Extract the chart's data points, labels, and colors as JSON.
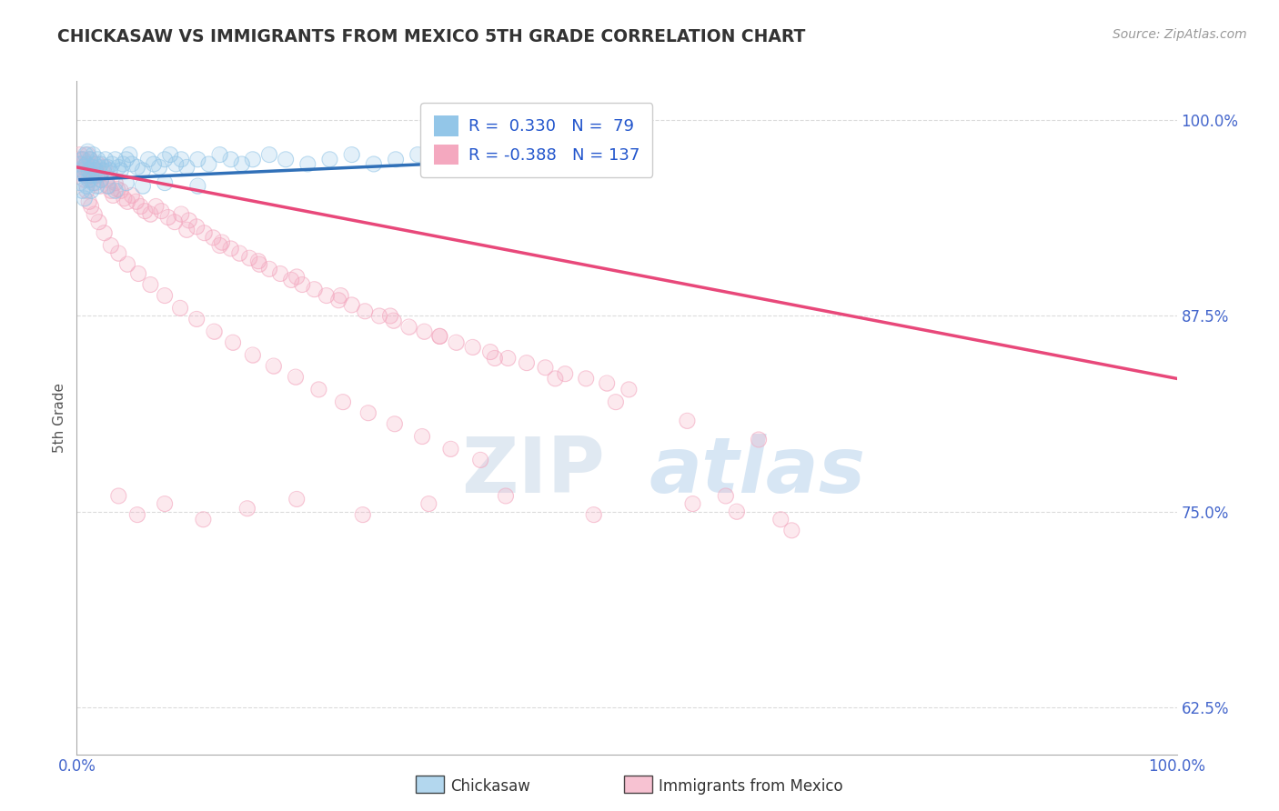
{
  "title": "CHICKASAW VS IMMIGRANTS FROM MEXICO 5TH GRADE CORRELATION CHART",
  "source_text": "Source: ZipAtlas.com",
  "ylabel": "5th Grade",
  "xlim": [
    0.0,
    1.0
  ],
  "ylim": [
    0.595,
    1.025
  ],
  "yticks": [
    0.625,
    0.75,
    0.875,
    1.0
  ],
  "ytick_labels": [
    "62.5%",
    "75.0%",
    "87.5%",
    "100.0%"
  ],
  "xticks": [
    0.0,
    1.0
  ],
  "xtick_labels": [
    "0.0%",
    "100.0%"
  ],
  "blue_R": 0.33,
  "blue_N": 79,
  "pink_R": -0.388,
  "pink_N": 137,
  "blue_color": "#93c6e8",
  "pink_color": "#f4a8bf",
  "blue_line_color": "#3070b8",
  "pink_line_color": "#e8487a",
  "legend_label_blue": "Chickasaw",
  "legend_label_pink": "Immigrants from Mexico",
  "watermark_zip": "ZIP",
  "watermark_atlas": "atlas",
  "background_color": "#ffffff",
  "grid_color": "#cccccc",
  "title_color": "#333333",
  "blue_scatter_x": [
    0.003,
    0.004,
    0.005,
    0.006,
    0.007,
    0.008,
    0.009,
    0.01,
    0.011,
    0.012,
    0.013,
    0.014,
    0.015,
    0.016,
    0.017,
    0.018,
    0.019,
    0.02,
    0.022,
    0.024,
    0.026,
    0.028,
    0.03,
    0.032,
    0.035,
    0.038,
    0.04,
    0.042,
    0.045,
    0.048,
    0.05,
    0.055,
    0.06,
    0.065,
    0.07,
    0.075,
    0.08,
    0.085,
    0.09,
    0.095,
    0.1,
    0.11,
    0.12,
    0.13,
    0.14,
    0.15,
    0.16,
    0.175,
    0.19,
    0.21,
    0.23,
    0.25,
    0.27,
    0.29,
    0.31,
    0.33,
    0.35,
    0.37,
    0.39,
    0.41,
    0.43,
    0.45,
    0.47,
    0.49,
    0.51,
    0.003,
    0.005,
    0.007,
    0.009,
    0.011,
    0.013,
    0.015,
    0.018,
    0.022,
    0.028,
    0.035,
    0.045,
    0.06,
    0.08,
    0.11
  ],
  "blue_scatter_y": [
    0.972,
    0.968,
    0.975,
    0.97,
    0.965,
    0.978,
    0.972,
    0.98,
    0.968,
    0.975,
    0.965,
    0.97,
    0.978,
    0.972,
    0.968,
    0.965,
    0.975,
    0.97,
    0.972,
    0.968,
    0.975,
    0.97,
    0.968,
    0.972,
    0.975,
    0.97,
    0.968,
    0.972,
    0.975,
    0.978,
    0.972,
    0.97,
    0.968,
    0.975,
    0.972,
    0.97,
    0.975,
    0.978,
    0.972,
    0.975,
    0.97,
    0.975,
    0.972,
    0.978,
    0.975,
    0.972,
    0.975,
    0.978,
    0.975,
    0.972,
    0.975,
    0.978,
    0.972,
    0.975,
    0.978,
    0.975,
    0.972,
    0.978,
    0.975,
    0.972,
    0.975,
    0.978,
    0.975,
    0.978,
    0.975,
    0.96,
    0.955,
    0.95,
    0.958,
    0.962,
    0.955,
    0.96,
    0.958,
    0.962,
    0.958,
    0.955,
    0.96,
    0.958,
    0.96,
    0.958
  ],
  "pink_scatter_x": [
    0.003,
    0.004,
    0.005,
    0.006,
    0.007,
    0.008,
    0.009,
    0.01,
    0.011,
    0.012,
    0.013,
    0.014,
    0.015,
    0.016,
    0.017,
    0.018,
    0.019,
    0.02,
    0.021,
    0.022,
    0.023,
    0.025,
    0.027,
    0.029,
    0.031,
    0.033,
    0.035,
    0.037,
    0.04,
    0.043,
    0.046,
    0.05,
    0.054,
    0.058,
    0.062,
    0.067,
    0.072,
    0.077,
    0.083,
    0.089,
    0.095,
    0.102,
    0.109,
    0.116,
    0.124,
    0.132,
    0.14,
    0.148,
    0.157,
    0.166,
    0.175,
    0.185,
    0.195,
    0.205,
    0.216,
    0.227,
    0.238,
    0.25,
    0.262,
    0.275,
    0.288,
    0.302,
    0.316,
    0.33,
    0.345,
    0.36,
    0.376,
    0.392,
    0.409,
    0.426,
    0.444,
    0.463,
    0.482,
    0.502,
    0.003,
    0.005,
    0.007,
    0.009,
    0.011,
    0.013,
    0.016,
    0.02,
    0.025,
    0.031,
    0.038,
    0.046,
    0.056,
    0.067,
    0.08,
    0.094,
    0.109,
    0.125,
    0.142,
    0.16,
    0.179,
    0.199,
    0.22,
    0.242,
    0.265,
    0.289,
    0.314,
    0.34,
    0.367,
    0.1,
    0.13,
    0.165,
    0.2,
    0.24,
    0.285,
    0.33,
    0.38,
    0.435,
    0.49,
    0.555,
    0.62,
    0.6,
    0.65,
    0.59,
    0.64,
    0.56,
    0.47,
    0.39,
    0.32,
    0.26,
    0.2,
    0.155,
    0.115,
    0.08,
    0.055,
    0.038
  ],
  "pink_scatter_y": [
    0.978,
    0.972,
    0.968,
    0.975,
    0.97,
    0.965,
    0.972,
    0.978,
    0.968,
    0.975,
    0.962,
    0.968,
    0.97,
    0.965,
    0.96,
    0.968,
    0.972,
    0.965,
    0.958,
    0.962,
    0.968,
    0.97,
    0.962,
    0.958,
    0.955,
    0.952,
    0.96,
    0.956,
    0.955,
    0.95,
    0.948,
    0.952,
    0.948,
    0.945,
    0.942,
    0.94,
    0.945,
    0.942,
    0.938,
    0.935,
    0.94,
    0.936,
    0.932,
    0.928,
    0.925,
    0.922,
    0.918,
    0.915,
    0.912,
    0.908,
    0.905,
    0.902,
    0.898,
    0.895,
    0.892,
    0.888,
    0.885,
    0.882,
    0.878,
    0.875,
    0.872,
    0.868,
    0.865,
    0.862,
    0.858,
    0.855,
    0.852,
    0.848,
    0.845,
    0.842,
    0.838,
    0.835,
    0.832,
    0.828,
    0.975,
    0.968,
    0.962,
    0.955,
    0.948,
    0.945,
    0.94,
    0.935,
    0.928,
    0.92,
    0.915,
    0.908,
    0.902,
    0.895,
    0.888,
    0.88,
    0.873,
    0.865,
    0.858,
    0.85,
    0.843,
    0.836,
    0.828,
    0.82,
    0.813,
    0.806,
    0.798,
    0.79,
    0.783,
    0.93,
    0.92,
    0.91,
    0.9,
    0.888,
    0.875,
    0.862,
    0.848,
    0.835,
    0.82,
    0.808,
    0.796,
    0.75,
    0.738,
    0.76,
    0.745,
    0.755,
    0.748,
    0.76,
    0.755,
    0.748,
    0.758,
    0.752,
    0.745,
    0.755,
    0.748,
    0.76
  ],
  "pink_trend_x": [
    0.0,
    1.0
  ],
  "pink_trend_y": [
    0.97,
    0.835
  ],
  "blue_trend_x": [
    0.003,
    0.51
  ],
  "blue_trend_y": [
    0.962,
    0.978
  ]
}
